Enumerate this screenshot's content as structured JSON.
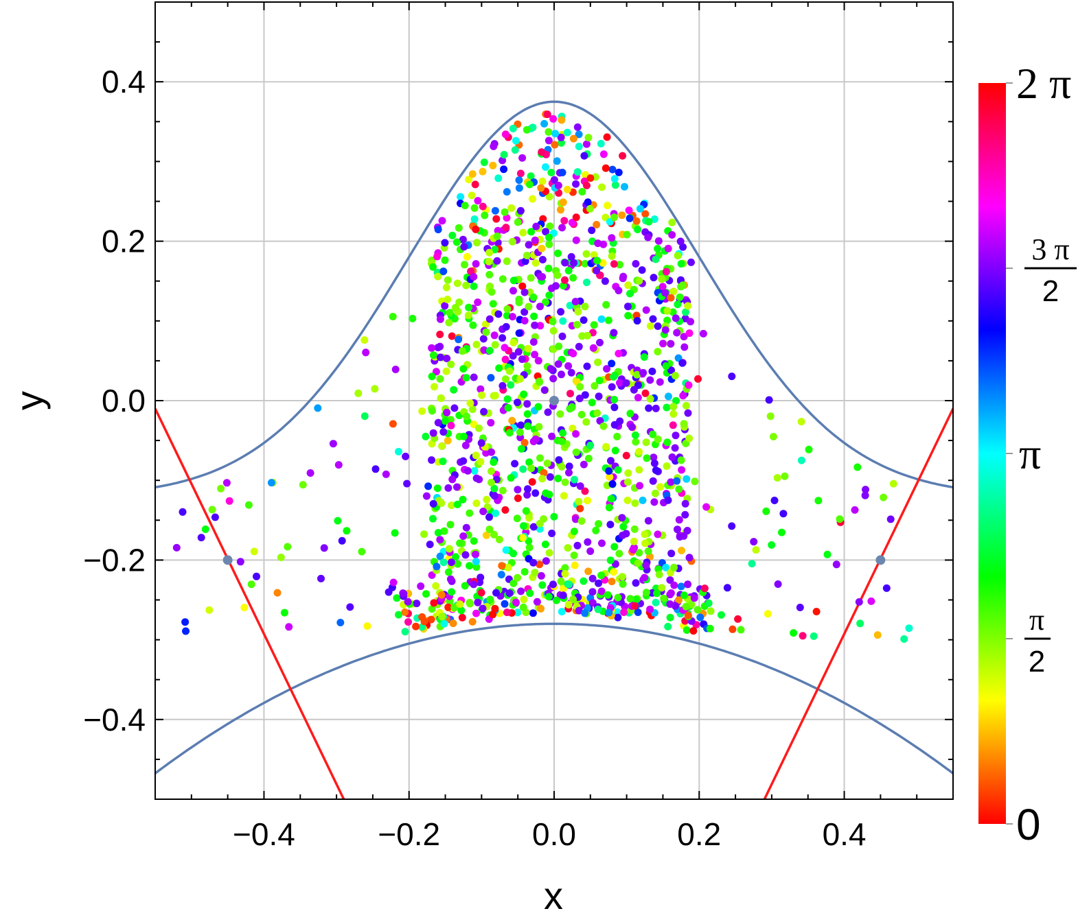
{
  "chart_data": {
    "type": "scatter",
    "title": "",
    "xlabel": "x",
    "ylabel": "y",
    "xlim": [
      -0.55,
      0.55
    ],
    "ylim": [
      -0.5,
      0.5
    ],
    "x_ticks": [
      "−0.4",
      "−0.2",
      "0.0",
      "0.2",
      "0.4"
    ],
    "x_tick_values": [
      -0.4,
      -0.2,
      0.0,
      0.2,
      0.4
    ],
    "y_ticks": [
      "−0.4",
      "−0.2",
      "0.0",
      "0.2",
      "0.4"
    ],
    "y_tick_values": [
      -0.4,
      -0.2,
      0.0,
      0.2,
      0.4
    ],
    "grid": true,
    "curves": [
      {
        "kind": "upper-boundary",
        "color": "#5B7DB1",
        "peak_y": 0.375,
        "edge_y": -0.08
      },
      {
        "kind": "lower-boundary",
        "color": "#5B7DB1",
        "top_y": -0.28,
        "edge_y": -0.47
      },
      {
        "kind": "left-line",
        "color": "#FF1A1A",
        "points": [
          [
            -0.55,
            -0.01
          ],
          [
            -0.29,
            -0.5
          ]
        ]
      },
      {
        "kind": "right-line",
        "color": "#FF1A1A",
        "points": [
          [
            0.29,
            -0.5
          ],
          [
            0.55,
            -0.01
          ]
        ]
      }
    ],
    "marked_points": [
      {
        "x": 0.0,
        "y": 0.0
      },
      {
        "x": -0.45,
        "y": -0.2
      },
      {
        "x": 0.45,
        "y": -0.2
      }
    ],
    "marker_color": "#6D86AD",
    "points_description_count": 1500,
    "color_scale": {
      "label_top": "2 π",
      "label_3pi2_num": "3 π",
      "label_3pi2_den": "2",
      "label_pi": "π",
      "label_pi2_num": "π",
      "label_pi2_den": "2",
      "label_bottom": "0",
      "range": [
        0,
        6.283
      ],
      "colormap": "hue"
    }
  }
}
